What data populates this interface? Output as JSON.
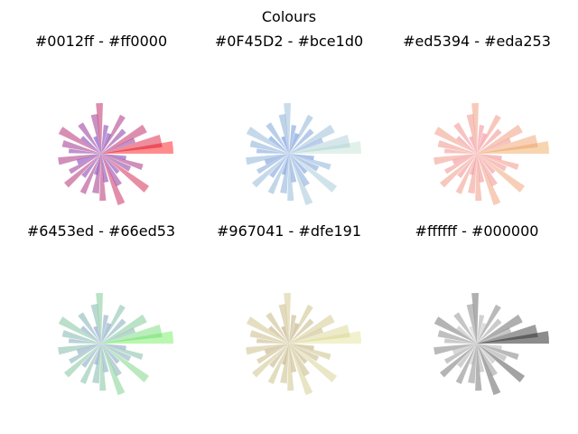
{
  "figure": {
    "title": "Colours"
  },
  "chart_data": [
    {
      "type": "bar",
      "polar": true,
      "title": "#0012ff - #ff0000",
      "color_from": "#0012ff",
      "color_to": "#ff0000",
      "alpha": 0.45,
      "axes": "off"
    },
    {
      "type": "bar",
      "polar": true,
      "title": "#0F45D2 - #bce1d0",
      "color_from": "#0F45D2",
      "color_to": "#bce1d0",
      "alpha": 0.45,
      "axes": "off"
    },
    {
      "type": "bar",
      "polar": true,
      "title": "#ed5394 - #eda253",
      "color_from": "#ed5394",
      "color_to": "#eda253",
      "alpha": 0.45,
      "axes": "off"
    },
    {
      "type": "bar",
      "polar": true,
      "title": "#6453ed - #66ed53",
      "color_from": "#6453ed",
      "color_to": "#66ed53",
      "alpha": 0.45,
      "axes": "off"
    },
    {
      "type": "bar",
      "polar": true,
      "title": "#967041 - #dfe191",
      "color_from": "#967041",
      "color_to": "#dfe191",
      "alpha": 0.45,
      "axes": "off"
    },
    {
      "type": "bar",
      "polar": true,
      "title": "#ffffff - #000000",
      "color_from": "#ffffff",
      "color_to": "#000000",
      "alpha": 0.45,
      "axes": "off"
    }
  ],
  "bars": [
    {
      "theta_deg": 5,
      "radius": 10.0,
      "width_deg": 10
    },
    {
      "theta_deg": 12,
      "radius": 8.5,
      "width_deg": 12
    },
    {
      "theta_deg": 22,
      "radius": 5.0,
      "width_deg": 8
    },
    {
      "theta_deg": 30,
      "radius": 7.0,
      "width_deg": 10
    },
    {
      "theta_deg": 45,
      "radius": 4.5,
      "width_deg": 10
    },
    {
      "theta_deg": 60,
      "radius": 6.0,
      "width_deg": 8
    },
    {
      "theta_deg": 68,
      "radius": 3.0,
      "width_deg": 12
    },
    {
      "theta_deg": 80,
      "radius": 4.0,
      "width_deg": 10
    },
    {
      "theta_deg": 92,
      "radius": 7.0,
      "width_deg": 8
    },
    {
      "theta_deg": 100,
      "radius": 5.5,
      "width_deg": 10
    },
    {
      "theta_deg": 110,
      "radius": 2.5,
      "width_deg": 12
    },
    {
      "theta_deg": 125,
      "radius": 5.0,
      "width_deg": 10
    },
    {
      "theta_deg": 140,
      "radius": 3.5,
      "width_deg": 10
    },
    {
      "theta_deg": 150,
      "radius": 6.5,
      "width_deg": 10
    },
    {
      "theta_deg": 165,
      "radius": 5.5,
      "width_deg": 10
    },
    {
      "theta_deg": 175,
      "radius": 4.5,
      "width_deg": 8
    },
    {
      "theta_deg": 190,
      "radius": 6.0,
      "width_deg": 10
    },
    {
      "theta_deg": 200,
      "radius": 3.5,
      "width_deg": 12
    },
    {
      "theta_deg": 210,
      "radius": 5.0,
      "width_deg": 8
    },
    {
      "theta_deg": 222,
      "radius": 6.5,
      "width_deg": 8
    },
    {
      "theta_deg": 232,
      "radius": 4.0,
      "width_deg": 10
    },
    {
      "theta_deg": 245,
      "radius": 6.0,
      "width_deg": 8
    },
    {
      "theta_deg": 255,
      "radius": 3.0,
      "width_deg": 10
    },
    {
      "theta_deg": 262,
      "radius": 5.5,
      "width_deg": 10
    },
    {
      "theta_deg": 272,
      "radius": 6.5,
      "width_deg": 8
    },
    {
      "theta_deg": 280,
      "radius": 4.0,
      "width_deg": 10
    },
    {
      "theta_deg": 292,
      "radius": 7.5,
      "width_deg": 8
    },
    {
      "theta_deg": 300,
      "radius": 5.0,
      "width_deg": 10
    },
    {
      "theta_deg": 312,
      "radius": 3.5,
      "width_deg": 10
    },
    {
      "theta_deg": 322,
      "radius": 8.0,
      "width_deg": 8
    },
    {
      "theta_deg": 332,
      "radius": 4.5,
      "width_deg": 10
    },
    {
      "theta_deg": 342,
      "radius": 6.0,
      "width_deg": 8
    },
    {
      "theta_deg": 350,
      "radius": 3.5,
      "width_deg": 10
    }
  ]
}
